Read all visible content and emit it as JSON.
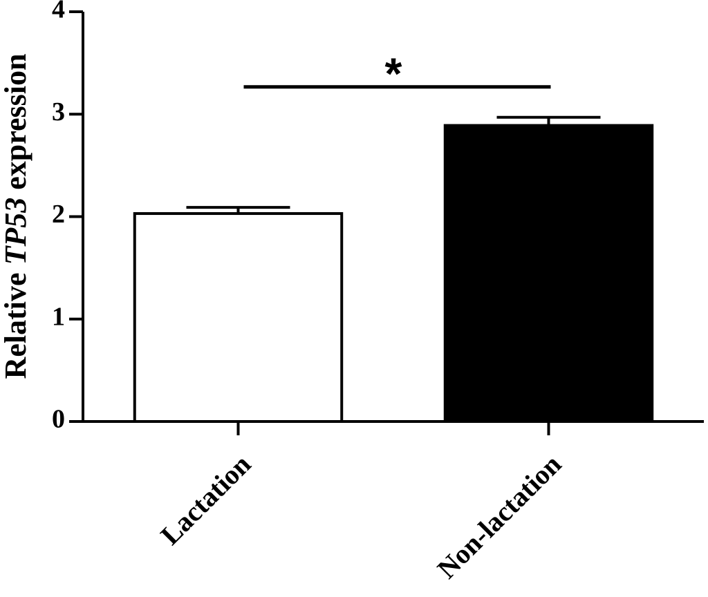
{
  "chart_data": {
    "type": "bar",
    "ylabel": [
      "Relative",
      "TP53",
      "expression"
    ],
    "categories": [
      "Lactation",
      "Non-lactation"
    ],
    "values": [
      2.03,
      2.89
    ],
    "errors": [
      0.06,
      0.08
    ],
    "colors": [
      "#ffffff",
      "#000000"
    ],
    "ylim": [
      0,
      4
    ],
    "yticks": [
      0,
      1,
      2,
      3,
      4
    ],
    "annotation": "*"
  }
}
